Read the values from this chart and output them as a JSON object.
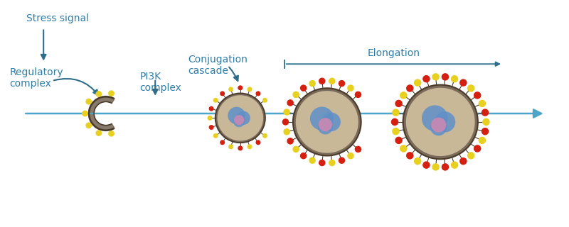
{
  "bg_color": "#ffffff",
  "arrow_color": "#4da6c8",
  "dark_arrow_color": "#2e6e8a",
  "text_color": "#2e7da6",
  "membrane_color": "#7a6a5a",
  "membrane_edge": "#4a3a2a",
  "inner_color": "#c8b898",
  "yellow_dot": "#e8d020",
  "red_dot": "#d42010",
  "blue_protein": "#6090c8",
  "pink_protein": "#d088b0",
  "labels": {
    "stress_signal": "Stress signal",
    "regulatory": "Regulatory\ncomplex",
    "pi3k": "PI3K\ncomplex",
    "conjugation": "Conjugation\ncascade",
    "elongation": "Elongation"
  },
  "label_fontsize": 10,
  "figsize": [
    8.0,
    3.2
  ],
  "dpi": 100
}
